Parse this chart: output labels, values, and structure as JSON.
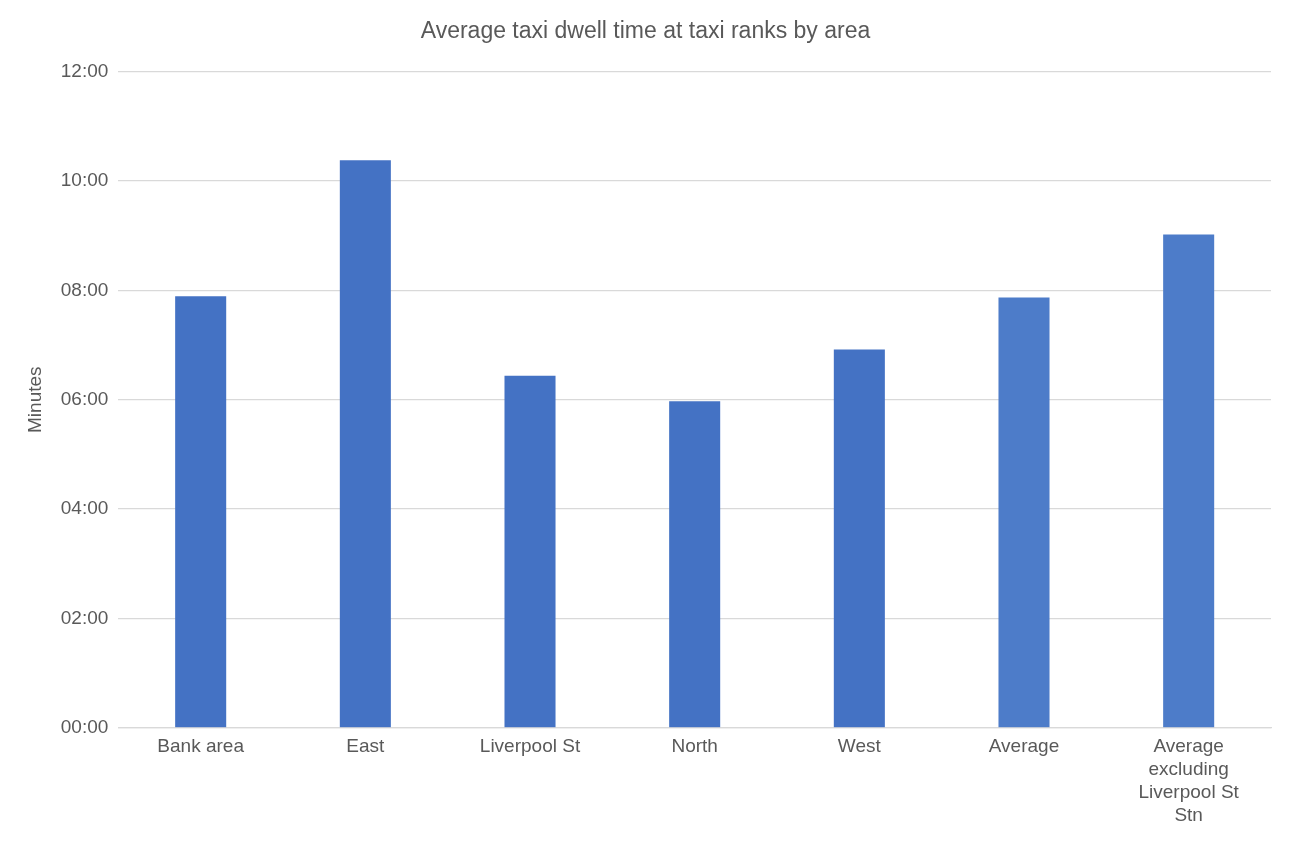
{
  "chart_data": {
    "type": "bar",
    "title": "Average taxi dwell time at taxi ranks by area",
    "ylabel": "Minutes",
    "categories": [
      "Bank area",
      "East",
      "Liverpool St",
      "North",
      "West",
      "Average",
      "Average excluding Liverpool St Stn"
    ],
    "values": [
      7.89,
      10.38,
      6.44,
      5.97,
      6.92,
      7.87,
      9.02
    ],
    "colors": [
      "#4472c4",
      "#4472c4",
      "#4472c4",
      "#4472c4",
      "#4472c4",
      "#4d7cc9",
      "#4d7cc9"
    ],
    "ylim": [
      0,
      12
    ],
    "yticks": [
      {
        "value": 0,
        "label": "00:00"
      },
      {
        "value": 2,
        "label": "02:00"
      },
      {
        "value": 4,
        "label": "04:00"
      },
      {
        "value": 6,
        "label": "06:00"
      },
      {
        "value": 8,
        "label": "08:00"
      },
      {
        "value": 10,
        "label": "10:00"
      },
      {
        "value": 12,
        "label": "12:00"
      }
    ],
    "grid": "y",
    "legend": false
  }
}
